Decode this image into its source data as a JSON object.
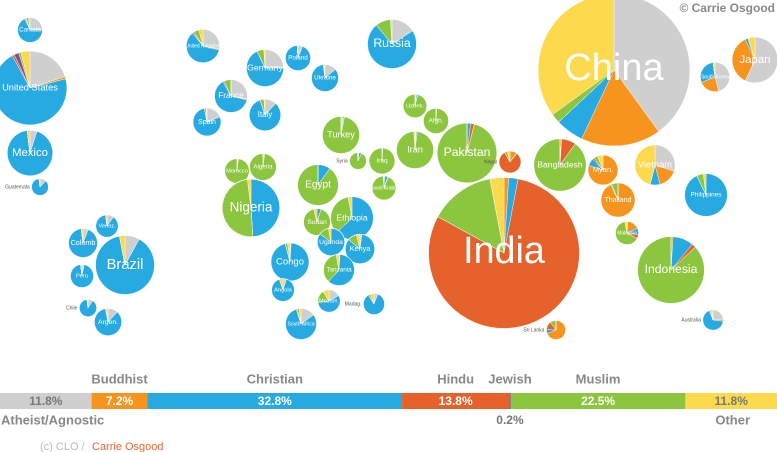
{
  "credit": "© Carrie Osgood",
  "footer": {
    "prefix": "(c) CLO /",
    "author": "Carrie Osgood"
  },
  "chart_data": [
    {
      "type": "pie-map",
      "countries": [
        {
          "name": "Canada",
          "population": 37,
          "values": [
            24,
            1,
            68,
            1,
            1,
            3,
            2
          ]
        },
        {
          "name": "United States",
          "population": 330,
          "values": [
            20,
            1,
            71,
            1,
            2,
            1,
            4
          ]
        },
        {
          "name": "Mexico",
          "population": 125,
          "values": [
            5,
            0,
            93,
            0,
            0,
            0,
            2
          ]
        },
        {
          "name": "Guatemala",
          "population": 17,
          "values": [
            12,
            0,
            86,
            0,
            0,
            0,
            2
          ]
        },
        {
          "name": "Colomb",
          "population": 50,
          "values": [
            6,
            0,
            92,
            0,
            0,
            0,
            2
          ]
        },
        {
          "name": "Venez.",
          "population": 30,
          "values": [
            10,
            0,
            88,
            0,
            0,
            0,
            2
          ]
        },
        {
          "name": "Peru",
          "population": 32,
          "values": [
            3,
            0,
            95,
            0,
            0,
            0,
            2
          ]
        },
        {
          "name": "Brazil",
          "population": 210,
          "values": [
            8,
            0,
            89,
            0,
            0,
            0,
            3
          ]
        },
        {
          "name": "Chile",
          "population": 18,
          "values": [
            9,
            0,
            89,
            0,
            0,
            0,
            2
          ]
        },
        {
          "name": "Argen.",
          "population": 45,
          "values": [
            12,
            0,
            85,
            0,
            0,
            1,
            2
          ]
        },
        {
          "name": "United Kingdom",
          "population": 67,
          "values": [
            28,
            1,
            60,
            1,
            1,
            5,
            4
          ]
        },
        {
          "name": "Germany",
          "population": 83,
          "values": [
            25,
            0,
            68,
            0,
            0,
            6,
            1
          ]
        },
        {
          "name": "Poland",
          "population": 38,
          "values": [
            6,
            0,
            93,
            0,
            0,
            0,
            1
          ]
        },
        {
          "name": "France",
          "population": 65,
          "values": [
            28,
            1,
            63,
            0,
            1,
            7,
            0
          ]
        },
        {
          "name": "Spain",
          "population": 47,
          "values": [
            19,
            0,
            78,
            0,
            0,
            2,
            1
          ]
        },
        {
          "name": "Italy",
          "population": 60,
          "values": [
            12,
            0,
            83,
            0,
            0,
            4,
            1
          ]
        },
        {
          "name": "Ukraine",
          "population": 44,
          "values": [
            14,
            0,
            84,
            0,
            0,
            1,
            1
          ]
        },
        {
          "name": "Russia",
          "population": 145,
          "values": [
            16,
            0,
            73,
            0,
            0,
            10,
            1
          ]
        },
        {
          "name": "Turkey",
          "population": 83,
          "values": [
            2,
            0,
            1,
            0,
            0,
            97,
            0
          ]
        },
        {
          "name": "Iran",
          "population": 83,
          "values": [
            1,
            0,
            1,
            0,
            0,
            97,
            1
          ]
        },
        {
          "name": "Pakistan",
          "population": 215,
          "values": [
            0,
            0,
            2,
            2,
            0,
            96,
            0
          ]
        },
        {
          "name": "Afgh.",
          "population": 38,
          "values": [
            0,
            0,
            1,
            0,
            0,
            99,
            0
          ]
        },
        {
          "name": "Uzbek.",
          "population": 33,
          "values": [
            2,
            0,
            2,
            0,
            0,
            96,
            0
          ]
        },
        {
          "name": "Iraq",
          "population": 40,
          "values": [
            0,
            0,
            1,
            0,
            0,
            99,
            0
          ]
        },
        {
          "name": "Saudi Arabia",
          "population": 34,
          "values": [
            1,
            0,
            4,
            1,
            0,
            93,
            1
          ]
        },
        {
          "name": "Syria",
          "population": 17,
          "values": [
            2,
            0,
            5,
            0,
            0,
            92,
            1
          ]
        },
        {
          "name": "Egypt",
          "population": 100,
          "values": [
            0,
            0,
            10,
            0,
            0,
            90,
            0
          ]
        },
        {
          "name": "Algeria",
          "population": 43,
          "values": [
            1,
            0,
            1,
            0,
            0,
            98,
            0
          ]
        },
        {
          "name": "Morocco",
          "population": 36,
          "values": [
            1,
            0,
            1,
            0,
            0,
            98,
            0
          ]
        },
        {
          "name": "Nigeria",
          "population": 200,
          "values": [
            0,
            0,
            49,
            0,
            0,
            49,
            2
          ]
        },
        {
          "name": "Ethiopia",
          "population": 110,
          "values": [
            0,
            0,
            63,
            0,
            0,
            34,
            3
          ]
        },
        {
          "name": "Sudan",
          "population": 43,
          "values": [
            0,
            0,
            5,
            0,
            0,
            91,
            4
          ]
        },
        {
          "name": "Congo",
          "population": 87,
          "values": [
            1,
            0,
            95,
            0,
            0,
            2,
            2
          ]
        },
        {
          "name": "Uganda",
          "population": 45,
          "values": [
            0,
            0,
            85,
            0,
            0,
            12,
            3
          ]
        },
        {
          "name": "Kenya",
          "population": 52,
          "values": [
            2,
            0,
            84,
            0,
            0,
            10,
            4
          ]
        },
        {
          "name": "Tanzania",
          "population": 58,
          "values": [
            1,
            0,
            61,
            0,
            0,
            35,
            3
          ]
        },
        {
          "name": "Angola",
          "population": 31,
          "values": [
            5,
            0,
            90,
            0,
            0,
            0,
            5
          ]
        },
        {
          "name": "Mozam.",
          "population": 30,
          "values": [
            17,
            0,
            56,
            0,
            0,
            18,
            9
          ]
        },
        {
          "name": "South Africa",
          "population": 58,
          "values": [
            15,
            0,
            80,
            1,
            0,
            2,
            2
          ]
        },
        {
          "name": "Madag.",
          "population": 27,
          "values": [
            6,
            0,
            85,
            0,
            0,
            3,
            6
          ]
        },
        {
          "name": "India",
          "population": 1380,
          "values": [
            0,
            1,
            2,
            80,
            0,
            14,
            3
          ]
        },
        {
          "name": "China",
          "population": 1400,
          "values": [
            40,
            17,
            6,
            0,
            0,
            2,
            35
          ]
        },
        {
          "name": "Bangladesh",
          "population": 165,
          "values": [
            0,
            1,
            0,
            9,
            0,
            90,
            0
          ]
        },
        {
          "name": "Nepal",
          "population": 29,
          "values": [
            0,
            10,
            1,
            81,
            0,
            4,
            4
          ]
        },
        {
          "name": "Japan",
          "population": 126,
          "values": [
            57,
            36,
            2,
            0,
            0,
            0,
            5
          ]
        },
        {
          "name": "South Korea",
          "population": 52,
          "values": [
            46,
            23,
            29,
            0,
            0,
            0,
            2
          ]
        },
        {
          "name": "Myan.",
          "population": 54,
          "values": [
            0,
            80,
            8,
            2,
            0,
            4,
            6
          ]
        },
        {
          "name": "Thailand",
          "population": 70,
          "values": [
            0,
            93,
            1,
            0,
            0,
            6,
            0
          ]
        },
        {
          "name": "Vietnam",
          "population": 97,
          "values": [
            30,
            16,
            8,
            0,
            0,
            0,
            46
          ]
        },
        {
          "name": "Philippines",
          "population": 110,
          "values": [
            0,
            0,
            93,
            0,
            0,
            5,
            2
          ]
        },
        {
          "name": "Malaysia",
          "population": 32,
          "values": [
            1,
            17,
            9,
            6,
            0,
            64,
            3
          ]
        },
        {
          "name": "Indonesia",
          "population": 270,
          "values": [
            0,
            1,
            10,
            2,
            0,
            87,
            0
          ]
        },
        {
          "name": "Australia",
          "population": 25,
          "values": [
            24,
            3,
            67,
            1,
            1,
            2,
            2
          ]
        },
        {
          "name": "Sri Lanka",
          "population": 22,
          "values": [
            0,
            69,
            7,
            14,
            0,
            10,
            0
          ]
        }
      ]
    },
    {
      "type": "stacked-bar",
      "series": [
        {
          "name": "Atheist/Agnostic",
          "color": "#cfcfcf",
          "values": [
            11.8
          ],
          "value_labels": [
            "11.8%"
          ]
        },
        {
          "name": "Buddhist",
          "color": "#f7941d",
          "values": [
            7.2
          ],
          "value_labels": [
            "7.2%"
          ]
        },
        {
          "name": "Christian",
          "color": "#27a9e1",
          "values": [
            32.8
          ],
          "value_labels": [
            "32.8%"
          ]
        },
        {
          "name": "Hindu",
          "color": "#e5622a",
          "values": [
            13.8
          ],
          "value_labels": [
            "13.8%"
          ]
        },
        {
          "name": "Jewish",
          "color": "#7b4fa0",
          "values": [
            0.2
          ],
          "value_labels": [
            "0.2%"
          ]
        },
        {
          "name": "Muslim",
          "color": "#8cc63f",
          "values": [
            22.5
          ],
          "value_labels": [
            "22.5%"
          ]
        },
        {
          "name": "Other",
          "color": "#fdd94e",
          "values": [
            11.8
          ],
          "value_labels": [
            "11.8%"
          ]
        }
      ]
    }
  ]
}
